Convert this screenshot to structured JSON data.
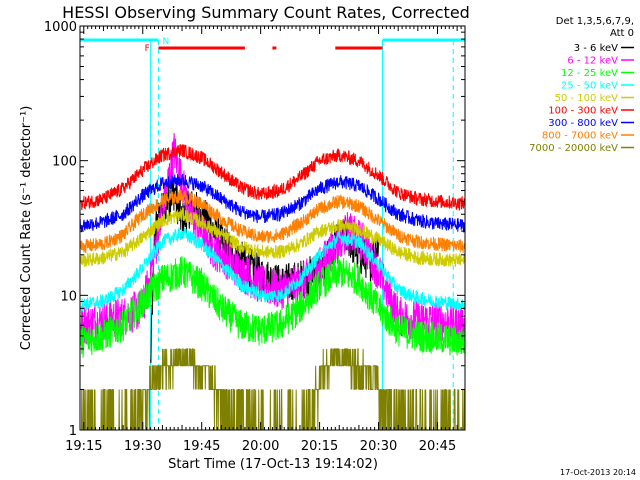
{
  "chart_data": {
    "type": "line",
    "title": "HESSI Observing Summary Count Rates, Corrected",
    "xlabel": "Start Time (17-Oct-13 19:14:02)",
    "ylabel": "Corrected Count Rate (s⁻¹ detector⁻¹)",
    "y_scale": "log",
    "ylim": [
      1,
      1000
    ],
    "y_ticks": [
      "1",
      "10",
      "100",
      "1000"
    ],
    "x_start": "19:14:02",
    "x_end": "20:52",
    "x_ticks": [
      "19:15",
      "19:30",
      "19:45",
      "20:00",
      "20:15",
      "20:30",
      "20:45"
    ],
    "legend": {
      "header_lines": [
        "Det 1,3,5,6,7,9,",
        "Att 0"
      ],
      "placement": "outside-right"
    },
    "footer_stamp": "17-Oct-2013 20:14",
    "flags": {
      "labels": [
        "F",
        "N"
      ],
      "f_label_time": "19:32",
      "n_label_time": "19:34",
      "night_color": "#00ffff",
      "flare_color": "#ff0000",
      "night_intervals": [
        [
          "19:14",
          "19:34"
        ],
        [
          "20:31",
          "20:52"
        ]
      ],
      "flare_intervals": [
        [
          "19:34",
          "19:56"
        ],
        [
          "20:03",
          "20:04"
        ],
        [
          "20:19",
          "20:31"
        ]
      ],
      "night_boundary_times": [
        "19:34",
        "20:49"
      ],
      "day_boundary_times": [
        "19:32",
        "20:31"
      ]
    },
    "series": [
      {
        "name": "3 - 6 keV",
        "color": "#000000",
        "x": [
          "19:32",
          "19:33",
          "19:36",
          "19:38",
          "19:40",
          "19:42",
          "19:45",
          "19:48",
          "19:50",
          "19:55",
          "20:00",
          "20:05",
          "20:10",
          "20:15",
          "20:18",
          "20:22",
          "20:25",
          "20:28",
          "20:30"
        ],
        "values": [
          3,
          30,
          50,
          60,
          35,
          45,
          40,
          30,
          25,
          18,
          14,
          12,
          13,
          15,
          22,
          28,
          20,
          18,
          25
        ]
      },
      {
        "name": "6 - 12 keV",
        "color": "#ff00ff",
        "x": [
          "19:14",
          "19:20",
          "19:25",
          "19:30",
          "19:33",
          "19:36",
          "19:38",
          "19:40",
          "19:42",
          "19:45",
          "19:48",
          "19:52",
          "19:55",
          "20:00",
          "20:05",
          "20:10",
          "20:15",
          "20:18",
          "20:22",
          "20:26",
          "20:30",
          "20:35",
          "20:40",
          "20:45",
          "20:52"
        ],
        "values": [
          6,
          6.5,
          7,
          8,
          20,
          60,
          120,
          70,
          40,
          30,
          22,
          18,
          15,
          12,
          11,
          12,
          16,
          22,
          30,
          25,
          15,
          7,
          6.5,
          6.5,
          6
        ]
      },
      {
        "name": "12 - 25 keV",
        "color": "#00ff00",
        "x": [
          "19:14",
          "19:20",
          "19:25",
          "19:30",
          "19:35",
          "19:40",
          "19:45",
          "19:50",
          "19:55",
          "20:00",
          "20:05",
          "20:10",
          "20:15",
          "20:20",
          "20:25",
          "20:30",
          "20:35",
          "20:40",
          "20:45",
          "20:52"
        ],
        "values": [
          4.5,
          5,
          6,
          9,
          13,
          15,
          12,
          8,
          6,
          5.5,
          6,
          8,
          12,
          15,
          13,
          8,
          5.5,
          5,
          4.8,
          4.5
        ]
      },
      {
        "name": "25 - 50 keV",
        "color": "#00ffff",
        "x": [
          "19:14",
          "19:20",
          "19:25",
          "19:30",
          "19:35",
          "19:40",
          "19:45",
          "19:50",
          "19:55",
          "20:00",
          "20:05",
          "20:10",
          "20:15",
          "20:20",
          "20:25",
          "20:30",
          "20:35",
          "20:40",
          "20:45",
          "20:52"
        ],
        "values": [
          8.5,
          9,
          11,
          16,
          25,
          29,
          24,
          17,
          12,
          10,
          10,
          13,
          20,
          27,
          25,
          17,
          11,
          9.5,
          9,
          8.5
        ]
      },
      {
        "name": "50 - 100 keV",
        "color": "#cccc00",
        "x": [
          "19:14",
          "19:20",
          "19:25",
          "19:30",
          "19:35",
          "19:40",
          "19:45",
          "19:50",
          "19:55",
          "20:00",
          "20:05",
          "20:10",
          "20:15",
          "20:20",
          "20:25",
          "20:30",
          "20:35",
          "20:40",
          "20:45",
          "20:52"
        ],
        "values": [
          18,
          19,
          21,
          27,
          36,
          40,
          35,
          28,
          23,
          21,
          21,
          24,
          30,
          33,
          31,
          26,
          21,
          19,
          18.5,
          18
        ]
      },
      {
        "name": "100 - 300 keV",
        "color": "#ff0000",
        "x": [
          "19:14",
          "19:20",
          "19:25",
          "19:30",
          "19:35",
          "19:40",
          "19:45",
          "19:50",
          "19:55",
          "20:00",
          "20:05",
          "20:10",
          "20:15",
          "20:20",
          "20:25",
          "20:30",
          "20:35",
          "20:40",
          "20:45",
          "20:52"
        ],
        "values": [
          48,
          52,
          62,
          85,
          110,
          120,
          105,
          82,
          63,
          56,
          60,
          75,
          100,
          110,
          100,
          78,
          58,
          52,
          50,
          48
        ]
      },
      {
        "name": "300 - 800 keV",
        "color": "#0000ff",
        "x": [
          "19:14",
          "19:20",
          "19:25",
          "19:30",
          "19:35",
          "19:40",
          "19:45",
          "19:50",
          "19:55",
          "20:00",
          "20:05",
          "20:10",
          "20:15",
          "20:20",
          "20:25",
          "20:30",
          "20:35",
          "20:40",
          "20:45",
          "20:52"
        ],
        "values": [
          33,
          35,
          40,
          55,
          68,
          72,
          65,
          52,
          42,
          38,
          40,
          48,
          62,
          70,
          65,
          52,
          40,
          36,
          34,
          33
        ]
      },
      {
        "name": "800 - 7000 keV",
        "color": "#ff8000",
        "x": [
          "19:14",
          "19:20",
          "19:25",
          "19:30",
          "19:35",
          "19:40",
          "19:45",
          "19:50",
          "19:55",
          "20:00",
          "20:05",
          "20:10",
          "20:15",
          "20:20",
          "20:25",
          "20:30",
          "20:35",
          "20:40",
          "20:45",
          "20:52"
        ],
        "values": [
          23,
          24,
          28,
          40,
          50,
          55,
          48,
          37,
          30,
          27,
          28,
          34,
          44,
          50,
          46,
          36,
          28,
          25,
          24,
          23
        ]
      },
      {
        "name": "7000 - 20000 keV",
        "color": "#808000",
        "x": [
          "19:14",
          "19:25",
          "19:30",
          "19:33",
          "19:35",
          "19:40",
          "19:43",
          "19:47",
          "19:50",
          "20:00",
          "20:10",
          "20:13",
          "20:16",
          "20:20",
          "20:25",
          "20:29",
          "20:31",
          "20:40",
          "20:52"
        ],
        "values": [
          1,
          1,
          1.5,
          2.5,
          3,
          3.5,
          3,
          2.5,
          1.5,
          1,
          1,
          1.5,
          3,
          3.5,
          3,
          2.5,
          1.5,
          1,
          1
        ]
      }
    ]
  }
}
